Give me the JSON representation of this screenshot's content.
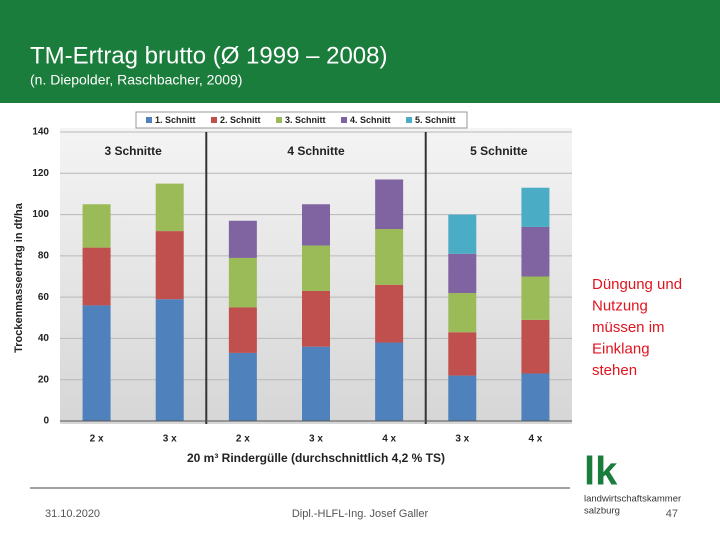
{
  "header": {
    "title": "TM-Ertrag brutto (Ø 1999 – 2008)",
    "subtitle": "(n. Diepolder, Raschbacher, 2009)"
  },
  "chart_data": {
    "type": "stacked_bar",
    "y_label": "Trockenmasseertrag in dt/ha",
    "x_label": "20 m³ Rindergülle (durchschnittlich 4,2 % TS)",
    "groups": [
      "3 Schnitte",
      "4 Schnitte",
      "5 Schnitte"
    ],
    "categories": [
      "2 x",
      "3 x",
      "2 x",
      "3 x",
      "4 x",
      "3 x",
      "4 x"
    ],
    "series": [
      {
        "name": "1. Schnitt",
        "color": "#4f81bd",
        "values": [
          56,
          59,
          33,
          36,
          38,
          22,
          23
        ]
      },
      {
        "name": "2. Schnitt",
        "color": "#c0504d",
        "values": [
          28,
          33,
          22,
          27,
          28,
          21,
          26
        ]
      },
      {
        "name": "3. Schnitt",
        "color": "#9bbb59",
        "values": [
          21,
          23,
          24,
          22,
          27,
          19,
          21
        ]
      },
      {
        "name": "4. Schnitt",
        "color": "#8064a2",
        "values": [
          null,
          null,
          18,
          20,
          24,
          19,
          24
        ]
      },
      {
        "name": "5. Schnitt",
        "color": "#4bacc6",
        "values": [
          null,
          null,
          null,
          null,
          null,
          19,
          19
        ]
      }
    ],
    "ylim": [
      0,
      140
    ],
    "yticks": [
      0,
      20,
      40,
      60,
      80,
      100,
      120,
      140
    ],
    "grid": true,
    "legend": "top"
  },
  "note": [
    "Düngung und",
    "Nutzung",
    "müssen im",
    "Einklang",
    "stehen"
  ],
  "footer": {
    "date": "31.10.2020",
    "author": "Dipl.-HLFL-Ing. Josef Galler",
    "page": "47"
  },
  "logo": {
    "mark": "lk",
    "line1": "landwirtschaftskammer",
    "line2": "salzburg"
  }
}
